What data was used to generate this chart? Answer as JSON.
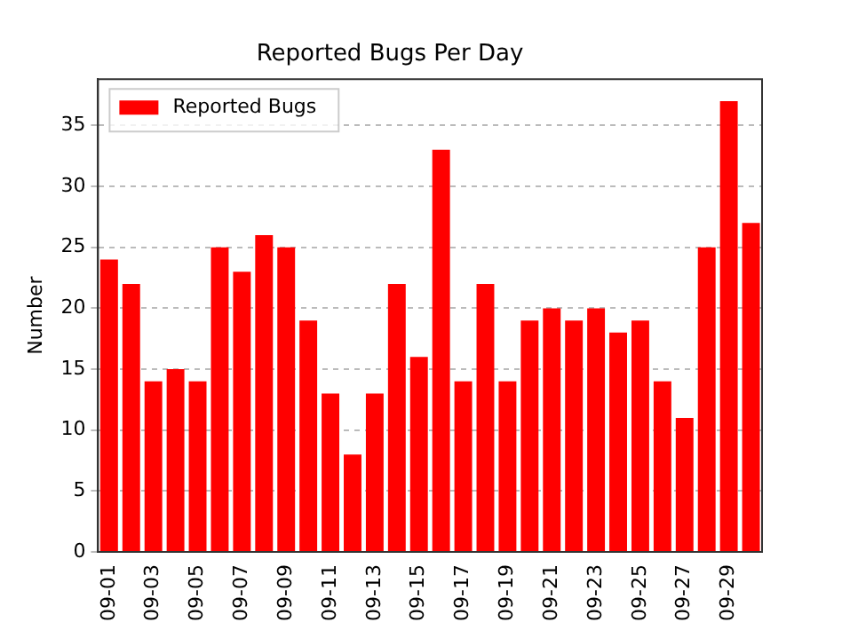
{
  "chart_data": {
    "type": "bar",
    "title": "Reported Bugs Per Day",
    "ylabel": "Number",
    "categories": [
      "09-01",
      null,
      "09-03",
      null,
      "09-05",
      null,
      "09-07",
      null,
      "09-09",
      null,
      "09-11",
      null,
      "09-13",
      null,
      "09-15",
      null,
      "09-17",
      null,
      "09-19",
      null,
      "09-21",
      null,
      "09-23",
      null,
      "09-25",
      null,
      "09-27",
      null,
      "09-29",
      null
    ],
    "series": [
      {
        "name": "Reported Bugs",
        "color": "#ff0000",
        "values": [
          24,
          22,
          14,
          15,
          14,
          25,
          23,
          26,
          25,
          19,
          13,
          8,
          13,
          22,
          16,
          33,
          14,
          22,
          14,
          19,
          20,
          19,
          20,
          18,
          19,
          14,
          11,
          25,
          37,
          27
        ]
      }
    ],
    "ylim": [
      0,
      38.8
    ],
    "yticks": [
      0,
      5,
      10,
      15,
      20,
      25,
      30,
      35
    ],
    "grid": "y",
    "legend": "top left"
  }
}
